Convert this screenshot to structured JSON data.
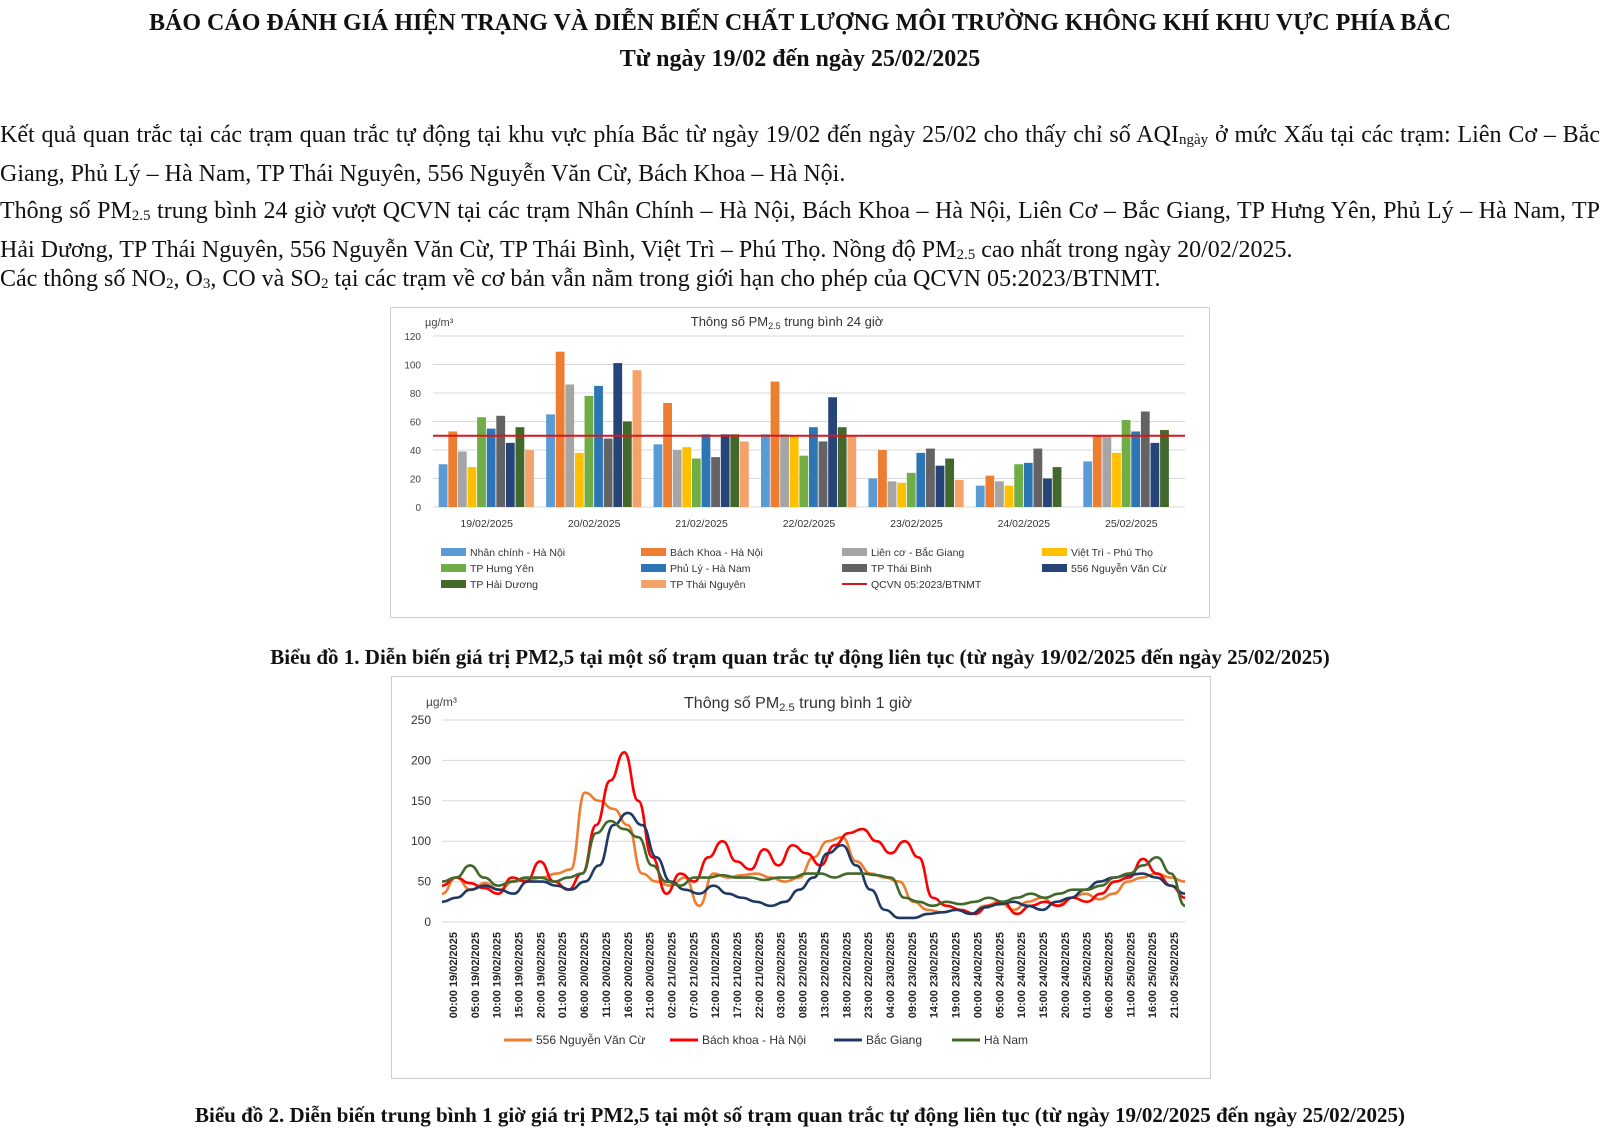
{
  "report": {
    "title": "BÁO CÁO ĐÁNH GIÁ HIỆN TRẠNG VÀ DIỄN BIẾN CHẤT LƯỢNG MÔI TRƯỜNG KHÔNG KHÍ KHU VỰC PHÍA BẮC",
    "subtitle": "Từ ngày 19/02 đến ngày 25/02/2025",
    "p1_a": "Kết quả quan trắc tại các trạm quan trắc tự động tại khu vực phía Bắc từ ngày 19/02 đến ngày 25/02 cho thấy chỉ số AQI",
    "p1_sub": "ngày",
    "p1_b": " ở mức Xấu tại các trạm: Liên Cơ – Bắc Giang, Phủ Lý – Hà Nam, TP Thái Nguyên, 556 Nguyễn Văn Cừ, Bách Khoa – Hà Nội.",
    "p2_a": "Thông số PM",
    "p2_sub1": "2.5",
    "p2_b": " trung bình 24 giờ vượt QCVN tại các trạm Nhân Chính – Hà Nội, Bách Khoa – Hà Nội, Liên Cơ – Bắc Giang, TP Hưng Yên, Phủ Lý – Hà Nam, TP Hải Dương, TP Thái Nguyên, 556 Nguyễn Văn Cừ, TP Thái Bình, Việt Trì – Phú Thọ. Nồng độ PM",
    "p2_sub2": "2.5",
    "p2_c": " cao nhất trong ngày 20/02/2025.",
    "p3_a": "Các thông số NO",
    "p3_s1": "2",
    "p3_b": ", O",
    "p3_s2": "3",
    "p3_c": ", CO và SO",
    "p3_s3": "2",
    "p3_d": " tại các trạm về cơ bản vẫn nằm trong giới hạn cho phép của QCVN 05:2023/BTNMT.",
    "caption1_a": "Biểu đồ 1. Diễn biến giá trị PM",
    "caption1_num": "2,5",
    "caption1_b": " tại một số trạm quan trắc tự động liên tục (từ ngày 19/02/2025 đến ngày 25/02/2025)",
    "caption2_a": "Biểu đồ 2. Diễn biến trung bình 1 giờ giá trị PM",
    "caption2_num": "2,5",
    "caption2_b": " tại một số trạm quan trắc tự động liên tục (từ ngày 19/02/2025 đến ngày 25/02/2025)"
  },
  "chart_data": [
    {
      "type": "bar",
      "title": "Thông số PM",
      "title_sub": "2.5",
      "title_rest": " trung bình 24 giờ",
      "ylabel": "µg/m³",
      "ylim": [
        0,
        120
      ],
      "yticks": [
        0,
        20,
        40,
        60,
        80,
        100,
        120
      ],
      "grid": true,
      "legend": "bottom",
      "categories": [
        "19/02/2025",
        "20/02/2025",
        "21/02/2025",
        "22/02/2025",
        "23/02/2025",
        "24/02/2025",
        "25/02/2025"
      ],
      "series": [
        {
          "name": "Nhân chính - Hà Nội",
          "color": "#5b9bd5",
          "values": [
            30,
            65,
            44,
            51,
            20,
            15,
            32
          ]
        },
        {
          "name": "Bách Khoa - Hà Nội",
          "color": "#ed7d31",
          "values": [
            53,
            109,
            73,
            88,
            40,
            22,
            50
          ]
        },
        {
          "name": "Liên cơ - Bắc Giang",
          "color": "#a5a5a5",
          "values": [
            39,
            86,
            40,
            51,
            18,
            18,
            50
          ]
        },
        {
          "name": "Việt Trì - Phú Thọ",
          "color": "#ffc000",
          "values": [
            28,
            38,
            42,
            50,
            17,
            15,
            38
          ]
        },
        {
          "name": "TP Hưng Yên",
          "color": "#70ad47",
          "values": [
            63,
            78,
            34,
            36,
            24,
            30,
            61
          ]
        },
        {
          "name": "Phủ Lý - Hà Nam",
          "color": "#2e75b6",
          "values": [
            55,
            85,
            51,
            56,
            38,
            31,
            53
          ]
        },
        {
          "name": "TP Thái Bình",
          "color": "#636363",
          "values": [
            64,
            48,
            35,
            46,
            41,
            41,
            67
          ]
        },
        {
          "name": "556 Nguyễn Văn Cừ",
          "color": "#264478",
          "values": [
            45,
            101,
            51,
            77,
            29,
            20,
            45
          ]
        },
        {
          "name": "TP Hải Dương",
          "color": "#43682b",
          "values": [
            56,
            60,
            51,
            56,
            34,
            28,
            54
          ]
        },
        {
          "name": "TP Thái Nguyên",
          "color": "#f4a26a",
          "values": [
            40,
            96,
            46,
            50,
            19,
            null,
            null
          ]
        }
      ],
      "threshold": {
        "name": "QCVN 05:2023/BTNMT",
        "color": "#d9161b",
        "value": 50
      }
    },
    {
      "type": "line",
      "title": "Thông số PM",
      "title_sub": "2.5",
      "title_rest": " trung bình 1 giờ",
      "ylabel": "µg/m³",
      "ylim": [
        0,
        250
      ],
      "yticks": [
        0,
        50,
        100,
        150,
        200,
        250
      ],
      "grid": true,
      "legend": "bottom",
      "xlabels": [
        "00:00 19/02/2025",
        "05:00 19/02/2025",
        "10:00 19/02/2025",
        "15:00 19/02/2025",
        "20:00 19/02/2025",
        "01:00 20/02/2025",
        "06:00 20/02/2025",
        "11:00 20/02/2025",
        "16:00 20/02/2025",
        "21:00 20/02/2025",
        "02:00 21/02/2025",
        "07:00 21/02/2025",
        "12:00 21/02/2025",
        "17:00 21/02/2025",
        "22:00 21/02/2025",
        "03:00 22/02/2025",
        "08:00 22/02/2025",
        "13:00 22/02/2025",
        "18:00 22/02/2025",
        "23:00 22/02/2025",
        "04:00 23/02/2025",
        "09:00 23/02/2025",
        "14:00 23/02/2025",
        "19:00 23/02/2025",
        "00:00 24/02/2025",
        "05:00 24/02/2025",
        "10:00 24/02/2025",
        "15:00 24/02/2025",
        "20:00 24/02/2025",
        "01:00 25/02/2025",
        "06:00 25/02/2025",
        "11:00 25/02/2025",
        "16:00 25/02/2025",
        "21:00 25/02/2025"
      ],
      "series": [
        {
          "name": "556 Nguyễn Văn Cừ",
          "color": "#ed7d31",
          "values": [
            35,
            55,
            40,
            48,
            40,
            50,
            52,
            55,
            60,
            65,
            160,
            150,
            140,
            120,
            60,
            50,
            45,
            55,
            20,
            60,
            55,
            58,
            60,
            55,
            50,
            55,
            80,
            100,
            105,
            75,
            60,
            55,
            50,
            25,
            15,
            12,
            15,
            10,
            20,
            25,
            15,
            25,
            30,
            20,
            30,
            35,
            28,
            35,
            50,
            55,
            60,
            55,
            50
          ]
        },
        {
          "name": "Bách khoa - Hà Nội",
          "color": "#ff0000",
          "values": [
            45,
            55,
            48,
            42,
            35,
            55,
            50,
            75,
            50,
            40,
            60,
            120,
            175,
            210,
            150,
            80,
            35,
            60,
            50,
            80,
            100,
            75,
            65,
            90,
            70,
            95,
            85,
            70,
            95,
            110,
            115,
            100,
            85,
            100,
            80,
            30,
            20,
            15,
            10,
            20,
            25,
            10,
            20,
            25,
            20,
            30,
            25,
            35,
            50,
            55,
            78,
            60,
            45,
            30
          ]
        },
        {
          "name": "Bắc Giang",
          "color": "#1f3864",
          "values": [
            25,
            30,
            40,
            45,
            40,
            35,
            50,
            50,
            45,
            40,
            50,
            70,
            120,
            135,
            120,
            80,
            50,
            40,
            35,
            45,
            35,
            30,
            25,
            20,
            25,
            40,
            55,
            85,
            95,
            70,
            40,
            15,
            5,
            5,
            10,
            12,
            15,
            10,
            18,
            22,
            25,
            20,
            15,
            25,
            30,
            40,
            50,
            55,
            58,
            60,
            55,
            45,
            35
          ]
        },
        {
          "name": "Hà Nam",
          "color": "#43682b",
          "values": [
            50,
            55,
            70,
            55,
            45,
            50,
            55,
            55,
            50,
            55,
            60,
            110,
            125,
            115,
            105,
            70,
            50,
            45,
            55,
            55,
            58,
            55,
            55,
            52,
            55,
            55,
            60,
            60,
            55,
            60,
            60,
            58,
            55,
            30,
            25,
            20,
            25,
            22,
            25,
            30,
            25,
            30,
            35,
            30,
            35,
            40,
            40,
            45,
            55,
            60,
            70,
            80,
            60,
            20
          ]
        }
      ]
    }
  ]
}
